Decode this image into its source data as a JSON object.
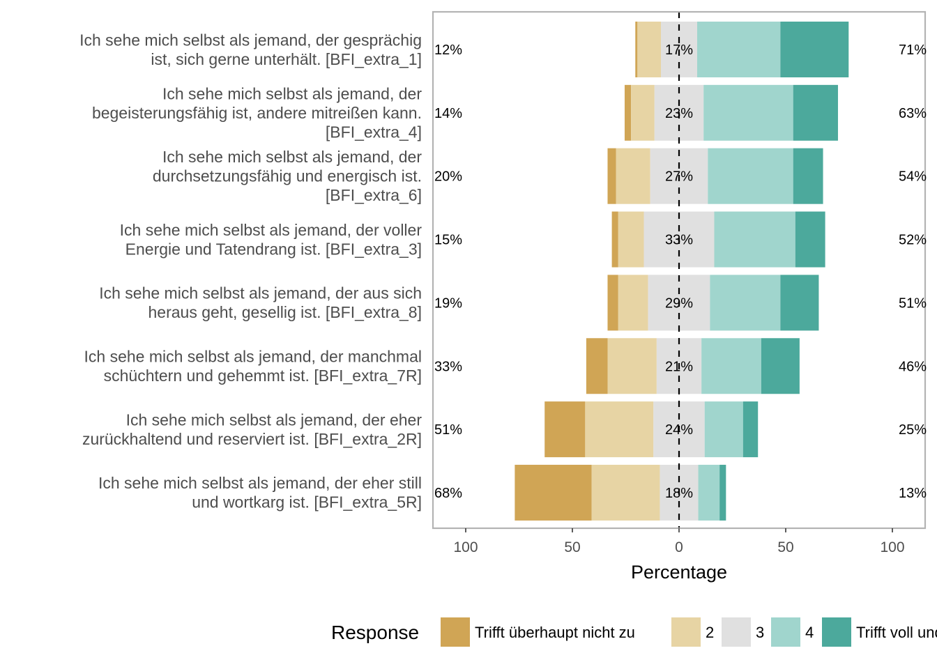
{
  "chart_data": {
    "type": "bar",
    "orientation": "horizontal-diverging",
    "categories": [
      "Ich sehe mich selbst als jemand, der gesprächig ist, sich gerne unterhält. [BFI_extra_1]",
      "Ich sehe mich selbst als jemand, der begeisterungsfähig ist, andere mitreißen kann. [BFI_extra_4]",
      "Ich sehe mich selbst als jemand, der durchsetzungsfähig und energisch ist. [BFI_extra_6]",
      "Ich sehe mich selbst als jemand, der voller Energie und Tatendrang ist. [BFI_extra_3]",
      "Ich sehe mich selbst als jemand, der aus sich heraus geht, gesellig ist. [BFI_extra_8]",
      "Ich sehe mich selbst als jemand, der manchmal schüchtern und gehemmt ist. [BFI_extra_7R]",
      "Ich sehe mich selbst als jemand, der eher zurückhaltend und reserviert ist. [BFI_extra_2R]",
      "Ich sehe mich selbst als jemand, der eher still und wortkarg ist. [BFI_extra_5R]"
    ],
    "category_lines": [
      [
        "Ich sehe mich selbst als jemand, der gesprächig",
        "ist, sich gerne unterhält. [BFI_extra_1]"
      ],
      [
        "Ich sehe mich selbst als jemand, der",
        "begeisterungsfähig ist, andere mitreißen kann.",
        "[BFI_extra_4]"
      ],
      [
        "Ich sehe mich selbst als jemand, der",
        "durchsetzungsfähig und energisch ist.",
        "[BFI_extra_6]"
      ],
      [
        "Ich sehe mich selbst als jemand, der voller",
        "Energie und Tatendrang ist. [BFI_extra_3]"
      ],
      [
        "Ich sehe mich selbst als jemand, der aus sich",
        "heraus geht, gesellig ist. [BFI_extra_8]"
      ],
      [
        "Ich sehe mich selbst als jemand, der manchmal",
        "schüchtern und gehemmt ist. [BFI_extra_7R]"
      ],
      [
        "Ich sehe mich selbst als jemand, der eher",
        "zurückhaltend und reserviert ist. [BFI_extra_2R]"
      ],
      [
        "Ich sehe mich selbst als jemand, der eher still",
        "und wortkarg ist. [BFI_extra_5R]"
      ]
    ],
    "series": [
      {
        "name": "Trifft überhaupt nicht zu",
        "color": "#D0A555",
        "values": [
          1,
          3,
          4,
          3,
          5,
          10,
          19,
          36
        ]
      },
      {
        "name": "2",
        "color": "#E7D4A4",
        "values": [
          11,
          11,
          16,
          12,
          14,
          23,
          32,
          32
        ]
      },
      {
        "name": "3",
        "color": "#E0E0E0",
        "values": [
          17,
          23,
          27,
          33,
          29,
          21,
          24,
          18
        ]
      },
      {
        "name": "4",
        "color": "#A0D5CD",
        "values": [
          39,
          42,
          40,
          38,
          33,
          28,
          18,
          10
        ]
      },
      {
        "name": "Trifft voll und ganz zu",
        "color": "#4CA99C",
        "values": [
          32,
          21,
          14,
          14,
          18,
          18,
          7,
          3
        ]
      }
    ],
    "labels_left": [
      "12%",
      "14%",
      "20%",
      "15%",
      "19%",
      "33%",
      "51%",
      "68%"
    ],
    "labels_center": [
      "17%",
      "23%",
      "27%",
      "33%",
      "29%",
      "21%",
      "24%",
      "18%"
    ],
    "labels_right": [
      "71%",
      "63%",
      "54%",
      "52%",
      "51%",
      "46%",
      "25%",
      "13%"
    ],
    "xlabel": "Percentage",
    "ylabel": "",
    "xlim": [
      -100,
      100
    ],
    "xticks": [
      "100",
      "50",
      "0",
      "50",
      "100"
    ],
    "legend": {
      "title": "Response",
      "position": "bottom"
    },
    "grid": false
  }
}
